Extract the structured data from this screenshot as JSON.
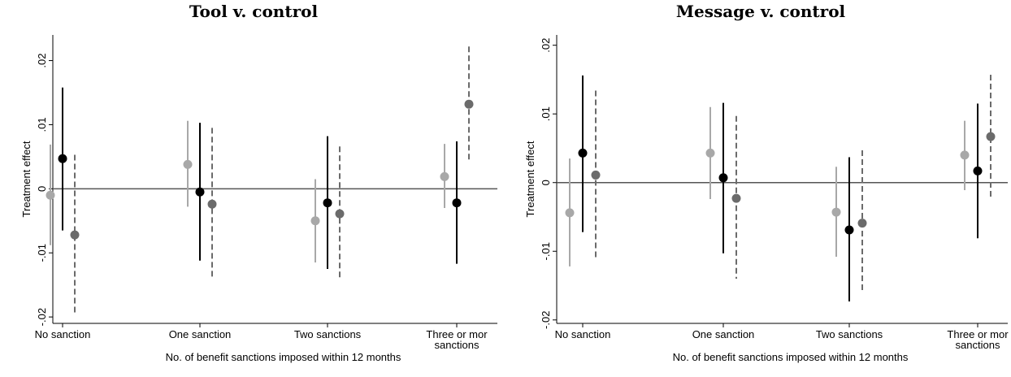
{
  "chart_data": [
    {
      "type": "scatter",
      "title": "Tool v. control",
      "xlabel": "No. of benefit sanctions imposed within 12 months",
      "ylabel": "Treatment effect",
      "categories": [
        "No sanction",
        "One sanction",
        "Two sanctions",
        "Three or mor sanctions"
      ],
      "category_lines": [
        [
          "No sanction"
        ],
        [
          "One sanction"
        ],
        [
          "Two sanctions"
        ],
        [
          "Three or mor",
          "sanctions"
        ]
      ],
      "yticks": [
        ".02",
        ".01",
        "0",
        "-.01",
        "-.02"
      ],
      "ylim": [
        -0.021,
        0.024
      ],
      "reference_line": 0,
      "grid": false,
      "series": [
        {
          "estimates": [
            -0.001,
            0.0038,
            -0.005,
            0.0019
          ],
          "lower": [
            -0.0088,
            -0.0028,
            -0.0115,
            -0.003
          ],
          "upper": [
            0.0069,
            0.0106,
            0.0015,
            0.007
          ],
          "color": "#a8a8a8",
          "line_style": "solid"
        },
        {
          "estimates": [
            0.0047,
            -0.0005,
            -0.0022,
            -0.0022
          ],
          "lower": [
            -0.0065,
            -0.0112,
            -0.0125,
            -0.0117
          ],
          "upper": [
            0.0158,
            0.0103,
            0.0082,
            0.0074
          ],
          "color": "#000000",
          "line_style": "solid"
        },
        {
          "estimates": [
            -0.0072,
            -0.0024,
            -0.0039,
            0.0132
          ],
          "lower": [
            -0.0196,
            -0.0137,
            -0.014,
            0.0044
          ],
          "upper": [
            0.0053,
            0.0095,
            0.0066,
            0.0222
          ],
          "color": "#6b6b6b",
          "line_style": "dashed"
        }
      ]
    },
    {
      "type": "scatter",
      "title": "Message v. control",
      "xlabel": "No. of benefit sanctions imposed within 12 months",
      "ylabel": "Treatment effect",
      "categories": [
        "No sanction",
        "One sanction",
        "Two sanctions",
        "Three or mor sanctions"
      ],
      "category_lines": [
        [
          "No sanction"
        ],
        [
          "One sanction"
        ],
        [
          "Two sanctions"
        ],
        [
          "Three or mor",
          "sanctions"
        ]
      ],
      "yticks": [
        ".02",
        ".01",
        "0",
        "-.01",
        "-.02"
      ],
      "ylim": [
        -0.0205,
        0.0215
      ],
      "reference_line": 0,
      "grid": false,
      "series": [
        {
          "estimates": [
            -0.0044,
            0.0043,
            -0.0043,
            0.004
          ],
          "lower": [
            -0.0122,
            -0.0024,
            -0.0108,
            -0.0011
          ],
          "upper": [
            0.0035,
            0.011,
            0.0023,
            0.009
          ],
          "color": "#a8a8a8",
          "line_style": "solid"
        },
        {
          "estimates": [
            0.0043,
            0.0007,
            -0.0069,
            0.0017
          ],
          "lower": [
            -0.0072,
            -0.0103,
            -0.0173,
            -0.0081
          ],
          "upper": [
            0.0156,
            0.0116,
            0.0037,
            0.0115
          ],
          "color": "#000000",
          "line_style": "solid"
        },
        {
          "estimates": [
            0.0011,
            -0.0023,
            -0.0059,
            0.0067
          ],
          "lower": [
            -0.0112,
            -0.014,
            -0.0158,
            -0.0022
          ],
          "upper": [
            0.0134,
            0.0097,
            0.0047,
            0.0157
          ],
          "color": "#6b6b6b",
          "line_style": "dashed"
        }
      ]
    }
  ]
}
